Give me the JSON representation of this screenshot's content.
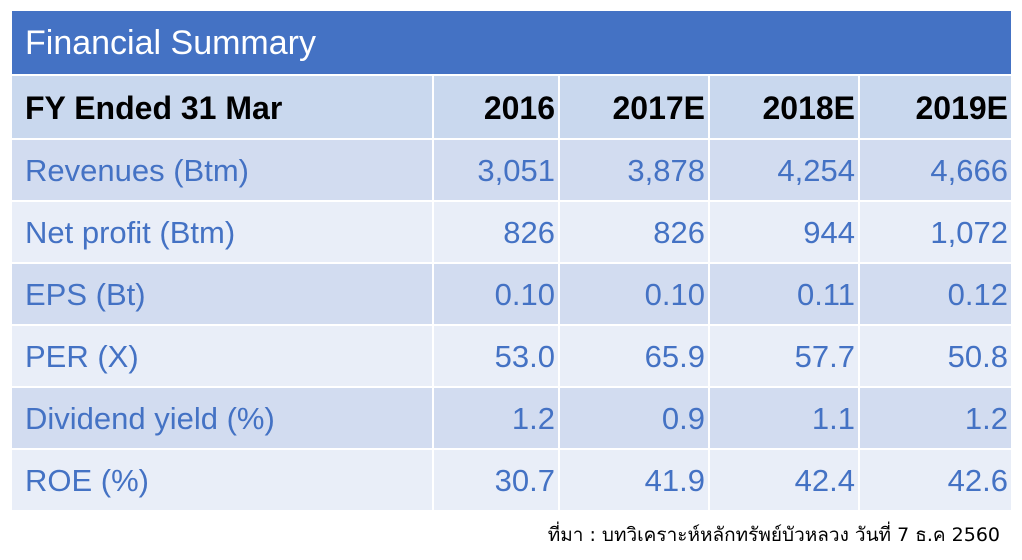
{
  "title": "Financial Summary",
  "header": {
    "label": "FY Ended 31 Mar",
    "years": [
      "2016",
      "2017E",
      "2018E",
      "2019E"
    ]
  },
  "rows": [
    {
      "label": "Revenues (Btm)",
      "values": [
        "3,051",
        "3,878",
        "4,254",
        "4,666"
      ]
    },
    {
      "label": "Net profit (Btm)",
      "values": [
        "826",
        "826",
        "944",
        "1,072"
      ]
    },
    {
      "label": "EPS (Bt)",
      "values": [
        "0.10",
        "0.10",
        "0.11",
        "0.12"
      ]
    },
    {
      "label": "PER (X)",
      "values": [
        "53.0",
        "65.9",
        "57.7",
        "50.8"
      ]
    },
    {
      "label": "Dividend yield (%)",
      "values": [
        "1.2",
        "0.9",
        "1.1",
        "1.2"
      ]
    },
    {
      "label": "ROE (%)",
      "values": [
        "30.7",
        "41.9",
        "42.4",
        "42.6"
      ]
    }
  ],
  "source": "ที่มา : บทวิเคราะห์หลักทรัพย์บัวหลวง วันที่ 7 ธ.ค 2560",
  "colors": {
    "title_bg": "#4472c4",
    "header_bg": "#c9d8ee",
    "row_dark": "#d2dcf0",
    "row_light": "#e9eef8",
    "text_blue": "#4472c4"
  }
}
